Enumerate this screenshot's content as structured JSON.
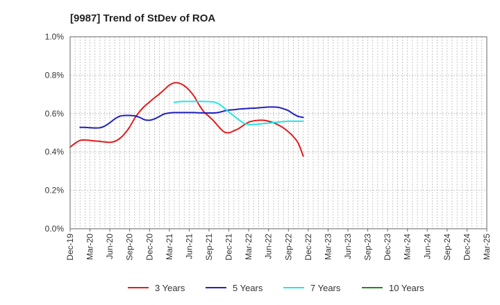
{
  "chart_data": {
    "type": "line",
    "title": "[9987]  Trend of StDev of ROA",
    "xlabel": "",
    "ylabel": "",
    "y_ticks": [
      "0.0%",
      "0.2%",
      "0.4%",
      "0.6%",
      "0.8%",
      "1.0%"
    ],
    "ylim": [
      0,
      1.0
    ],
    "x_ticks": [
      "Dec-19",
      "Mar-20",
      "Jun-20",
      "Sep-20",
      "Dec-20",
      "Mar-21",
      "Jun-21",
      "Sep-21",
      "Dec-21",
      "Mar-22",
      "Jun-22",
      "Sep-22",
      "Dec-22",
      "Mar-23",
      "Jun-23",
      "Sep-23",
      "Dec-23",
      "Mar-24",
      "Jun-24",
      "Sep-24",
      "Dec-24",
      "Mar-25"
    ],
    "grid": true,
    "legend_position": "bottom",
    "series": [
      {
        "name": "3 Years",
        "color": "#e31a1c",
        "values": [
          0.425,
          0.445,
          0.46,
          0.462,
          0.46,
          0.457,
          0.455,
          0.452,
          0.45,
          0.455,
          0.47,
          0.495,
          0.53,
          0.575,
          0.61,
          0.638,
          0.66,
          0.682,
          0.702,
          0.725,
          0.748,
          0.76,
          0.758,
          0.745,
          0.722,
          0.69,
          0.645,
          0.608,
          0.585,
          0.56,
          0.53,
          0.505,
          0.5,
          0.51,
          0.522,
          0.54,
          0.555,
          0.562,
          0.565,
          0.565,
          0.56,
          0.552,
          0.54,
          0.525,
          0.505,
          0.48,
          0.445,
          0.378
        ]
      },
      {
        "name": "5 Years",
        "color": "#1f1fbf",
        "values": [
          null,
          null,
          0.528,
          0.528,
          0.526,
          0.525,
          0.526,
          0.535,
          0.552,
          0.572,
          0.586,
          0.59,
          0.59,
          0.588,
          0.58,
          0.568,
          0.565,
          0.572,
          0.585,
          0.598,
          0.603,
          0.605,
          0.605,
          0.605,
          0.605,
          0.605,
          0.604,
          0.603,
          0.603,
          0.603,
          0.606,
          0.613,
          0.618,
          0.62,
          0.623,
          0.625,
          0.627,
          0.628,
          0.63,
          0.632,
          0.634,
          0.634,
          0.632,
          0.625,
          0.615,
          0.598,
          0.585,
          0.58
        ]
      },
      {
        "name": "7 Years",
        "color": "#22e5e5",
        "values": [
          null,
          null,
          null,
          null,
          null,
          null,
          null,
          null,
          null,
          null,
          null,
          null,
          null,
          null,
          null,
          null,
          null,
          null,
          null,
          null,
          null,
          0.658,
          0.662,
          0.663,
          0.663,
          0.663,
          0.663,
          0.663,
          0.662,
          0.66,
          0.65,
          0.63,
          0.608,
          0.588,
          0.568,
          0.55,
          0.543,
          0.543,
          0.545,
          0.548,
          0.55,
          0.553,
          0.556,
          0.558,
          0.56,
          0.56,
          0.56,
          0.56
        ]
      },
      {
        "name": "10 Years",
        "color": "#1a8a1a",
        "values": []
      }
    ]
  }
}
